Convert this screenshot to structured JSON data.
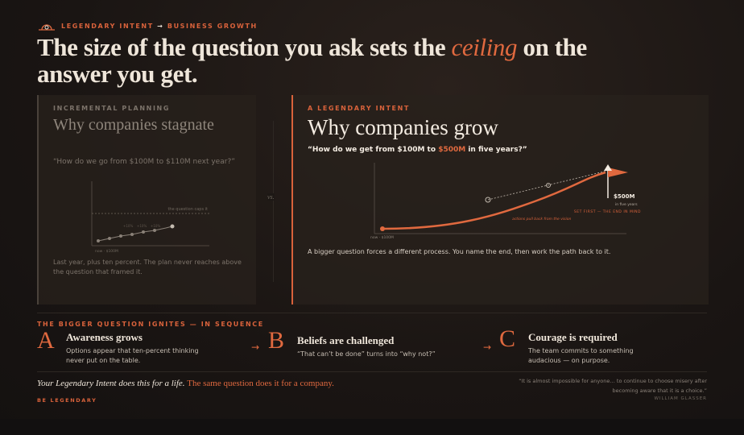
{
  "header": {
    "eyebrow_left": "LEGENDARY INTENT",
    "eyebrow_right": "BUSINESS GROWTH",
    "title_before": "The size of the question you ask sets the",
    "title_emphasis": "ceiling",
    "title_after": "on the answer you get."
  },
  "left_panel": {
    "eyebrow": "INCREMENTAL PLANNING",
    "title": "Why companies stagnate",
    "question": "“How do we go from $100M to $110M next year?”",
    "chart": {
      "cap_label": "the question caps it",
      "step_labels": [
        "+10%",
        "+10%",
        "+10%"
      ],
      "start_label": "now · $100M"
    },
    "caption": "Last year, plus ten percent. The plan never reaches above the question that framed it."
  },
  "versus": "vs.",
  "right_panel": {
    "eyebrow": "A LEGENDARY INTENT",
    "title": "Why companies grow",
    "question_before": "“How do we get from $100M to",
    "question_emphasis": "$500M",
    "question_after": "in five years?”",
    "chart": {
      "target_label": "$500M",
      "target_sub": "in five years",
      "end_label": "SET FIRST — THE END IN MIND",
      "path_label": "actions pull back from the vision",
      "start_label": "now · $100M"
    },
    "caption": "A bigger question forces a different process. You name the end, then work the path back to it."
  },
  "sequence": {
    "title": "THE BIGGER QUESTION IGNITES — IN SEQUENCE",
    "steps": [
      {
        "letter": "A",
        "title": "Awareness grows",
        "text": "Options appear that ten-percent thinking never put on the table."
      },
      {
        "letter": "B",
        "title": "Beliefs are challenged",
        "text": "“That can’t be done” turns into “why not?”"
      },
      {
        "letter": "C",
        "title": "Courage is required",
        "text": "The team commits to something audacious — on purpose."
      }
    ]
  },
  "footer": {
    "line_before": "Your Legendary Intent does this for a life.",
    "line_emphasis": "The same question does it for a company.",
    "signoff": "BE LEGENDARY",
    "quote": "“It is almost impossible for anyone… to continue to choose misery after becoming aware that it is a choice.”",
    "attribution": "WILLIAM GLASSER"
  }
}
